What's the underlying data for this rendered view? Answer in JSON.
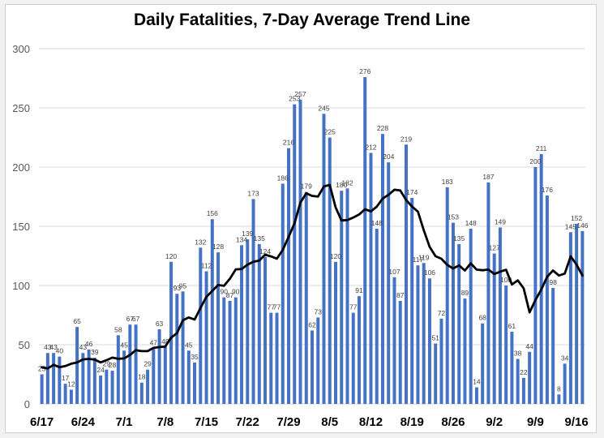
{
  "chart_data": {
    "type": "bar",
    "title": "Daily Fatalities, 7-Day Average Trend Line",
    "xlabel": "",
    "ylabel": "",
    "ylim": [
      0,
      300
    ],
    "yticks": [
      0,
      50,
      100,
      150,
      200,
      250,
      300
    ],
    "grid": true,
    "legend": "none",
    "x_tick_labels": [
      "6/17",
      "6/24",
      "7/1",
      "7/8",
      "7/15",
      "7/22",
      "7/29",
      "8/5",
      "8/12",
      "8/19",
      "8/26",
      "9/2",
      "9/9",
      "9/16"
    ],
    "x_tick_every": 7,
    "series": [
      {
        "name": "Daily Fatalities",
        "type": "bar",
        "color": "#4472c4",
        "values": [
          25,
          43,
          43,
          40,
          17,
          12,
          65,
          43,
          46,
          39,
          24,
          29,
          28,
          58,
          45,
          67,
          67,
          18,
          29,
          47,
          63,
          48,
          120,
          93,
          95,
          45,
          35,
          132,
          112,
          156,
          128,
          90,
          87,
          90,
          134,
          139,
          173,
          135,
          124,
          77,
          77,
          186,
          216,
          253,
          257,
          179,
          62,
          73,
          245,
          225,
          120,
          180,
          182,
          77,
          91,
          276,
          212,
          148,
          228,
          204,
          107,
          87,
          219,
          174,
          117,
          119,
          106,
          51,
          72,
          183,
          153,
          135,
          89,
          148,
          14,
          68,
          187,
          127,
          149,
          100,
          61,
          38,
          22,
          44,
          200,
          211,
          176,
          98,
          8,
          34,
          145,
          152,
          146
        ]
      },
      {
        "name": "7-Day Average",
        "type": "line",
        "color": "#000000",
        "values": [
          31,
          30,
          33,
          31,
          32,
          34,
          35.0,
          37.6,
          38.0,
          37.4,
          35.1,
          36.9,
          39.1,
          38.1,
          38.4,
          41.4,
          45.4,
          44.6,
          44.6,
          47.3,
          48.0,
          48.4,
          56.0,
          59.7,
          70.7,
          73.0,
          71.3,
          81.1,
          90.3,
          95.4,
          100.4,
          99.7,
          105.7,
          113.6,
          113.9,
          117.7,
          120.1,
          121.1,
          126.0,
          124.6,
          122.7,
          130.1,
          141.1,
          152.6,
          170.0,
          177.9,
          175.7,
          175.1,
          183.6,
          184.9,
          165.9,
          154.9,
          155.3,
          157.4,
          160.0,
          164.4,
          162.6,
          166.6,
          173.4,
          176.6,
          180.9,
          180.3,
          172.1,
          166.7,
          162.3,
          146.7,
          132.7,
          124.7,
          122.6,
          117.4,
          114.4,
          117.0,
          112.7,
          118.7,
          113.4,
          112.9,
          113.4,
          109.7,
          111.7,
          113.3,
          100.9,
          104.3,
          97.7,
          77.3,
          87.7,
          96.6,
          107.4,
          112.7,
          108.4,
          110.1,
          124.6,
          117.7,
          108.4
        ]
      }
    ]
  }
}
